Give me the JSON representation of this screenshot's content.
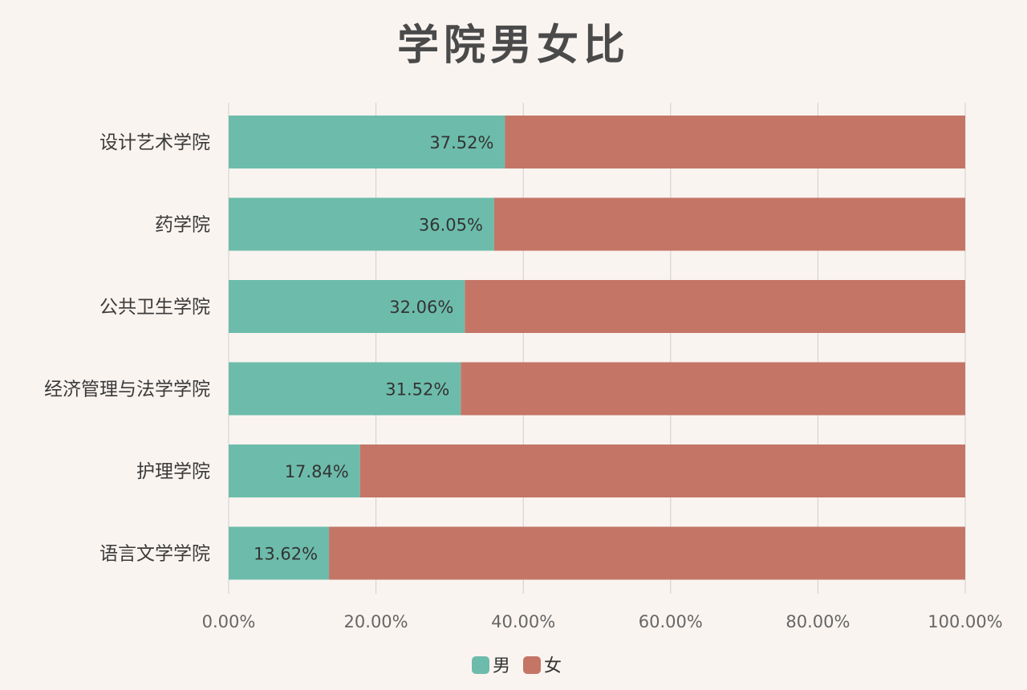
{
  "chart_data": {
    "type": "bar",
    "orientation": "horizontal",
    "stacked": true,
    "title": "学院男女比",
    "categories": [
      "设计艺术学院",
      "药学院",
      "公共卫生学院",
      "经济管理与法学学院",
      "护理学院",
      "语言文学学院"
    ],
    "series": [
      {
        "name": "男",
        "color": "#6dbcab",
        "values": [
          37.52,
          36.05,
          32.06,
          31.52,
          17.84,
          13.62
        ],
        "labels": [
          "37.52%",
          "36.05%",
          "32.06%",
          "31.52%",
          "17.84%",
          "13.62%"
        ]
      },
      {
        "name": "女",
        "color": "#c47566",
        "values": [
          62.48,
          63.95,
          67.94,
          68.48,
          82.16,
          86.38
        ]
      }
    ],
    "xlim": [
      0,
      100
    ],
    "x_ticks": [
      0,
      20,
      40,
      60,
      80,
      100
    ],
    "x_tick_labels": [
      "0.00%",
      "20.00%",
      "40.00%",
      "60.00%",
      "80.00%",
      "100.00%"
    ],
    "grid": true,
    "legend_position": "bottom"
  }
}
